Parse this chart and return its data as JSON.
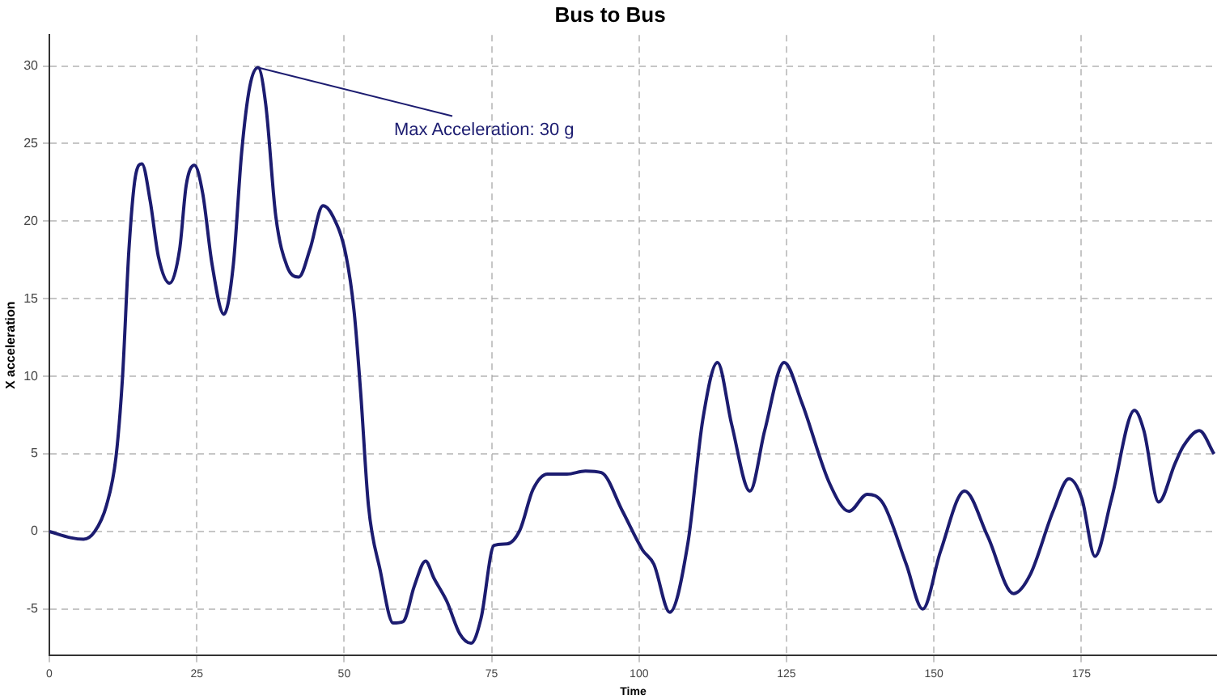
{
  "chart_data": {
    "type": "line",
    "title": "Bus to Bus",
    "xlabel": "Time",
    "ylabel": "X acceleration",
    "xlim": [
      0,
      198
    ],
    "xticks": [
      0,
      25,
      50,
      75,
      100,
      125,
      150,
      175
    ],
    "ylim": [
      -8,
      32
    ],
    "yticks": [
      -5,
      0,
      5,
      10,
      15,
      20,
      25,
      30
    ],
    "grid": true,
    "legend": false,
    "marker": "none",
    "line_style": "solid",
    "annotations": [
      {
        "text": "Max Acceleration: 30 g",
        "x": 35.4,
        "y": 29.9
      }
    ],
    "series": [
      {
        "color": "#1c1c70",
        "x": [
          0,
          3.6,
          5.8,
          7.7,
          9.7,
          11.3,
          12.4,
          13.5,
          14.6,
          15.7,
          17.1,
          18.5,
          20.4,
          22.1,
          23.2,
          24.6,
          26,
          27.6,
          29.6,
          31.2,
          32.6,
          34,
          35.4,
          36.7,
          38.4,
          40.3,
          42.3,
          44.2,
          46.4,
          48.1,
          50.3,
          51.7,
          52.8,
          54.1,
          56.1,
          58.3,
          60,
          61.9,
          63.8,
          65.2,
          67.4,
          69.6,
          71.5,
          73.2,
          75.4,
          77.6,
          79.8,
          82,
          84.5,
          87.8,
          90.9,
          93.6,
          97.2,
          100.6,
          102.5,
          105.2,
          108.3,
          110.8,
          113.3,
          115.7,
          118.8,
          121.3,
          124.6,
          127.6,
          132.3,
          135.6,
          138.7,
          141.4,
          145.3,
          148.1,
          151.1,
          155.2,
          159.1,
          163.5,
          166.3,
          170.2,
          172.9,
          175.1,
          177.3,
          180.1,
          184,
          185.6,
          188.1,
          190.9,
          192.3,
          195,
          197.5
        ],
        "values": [
          0,
          -0.4,
          -0.5,
          0,
          1.7,
          4.8,
          9.9,
          18.2,
          22.9,
          23.7,
          21.3,
          17.7,
          16,
          18.2,
          22.3,
          23.6,
          21.8,
          17.2,
          14,
          17.2,
          24.4,
          28.7,
          29.9,
          27.5,
          20.3,
          17.1,
          16.4,
          18.2,
          21,
          20.3,
          17.8,
          14.1,
          8.9,
          1.7,
          -2.5,
          -5.9,
          -5.8,
          -3.5,
          -1.9,
          -3,
          -4.5,
          -6.6,
          -7.2,
          -5.6,
          -0.9,
          -0.8,
          0.1,
          2.7,
          3.7,
          3.7,
          3.9,
          3.8,
          1.3,
          -1.2,
          -2.1,
          -5.2,
          -0.7,
          7.2,
          10.9,
          6.9,
          2.6,
          6.5,
          10.9,
          8.3,
          3.1,
          1.3,
          2.4,
          1.8,
          -2.1,
          -5,
          -1.3,
          2.6,
          -0.3,
          -4,
          -2.8,
          1.3,
          3.4,
          2.1,
          -1.6,
          2.1,
          7.8,
          6.5,
          1.9,
          4.4,
          5.5,
          6.5,
          5
        ]
      }
    ]
  }
}
